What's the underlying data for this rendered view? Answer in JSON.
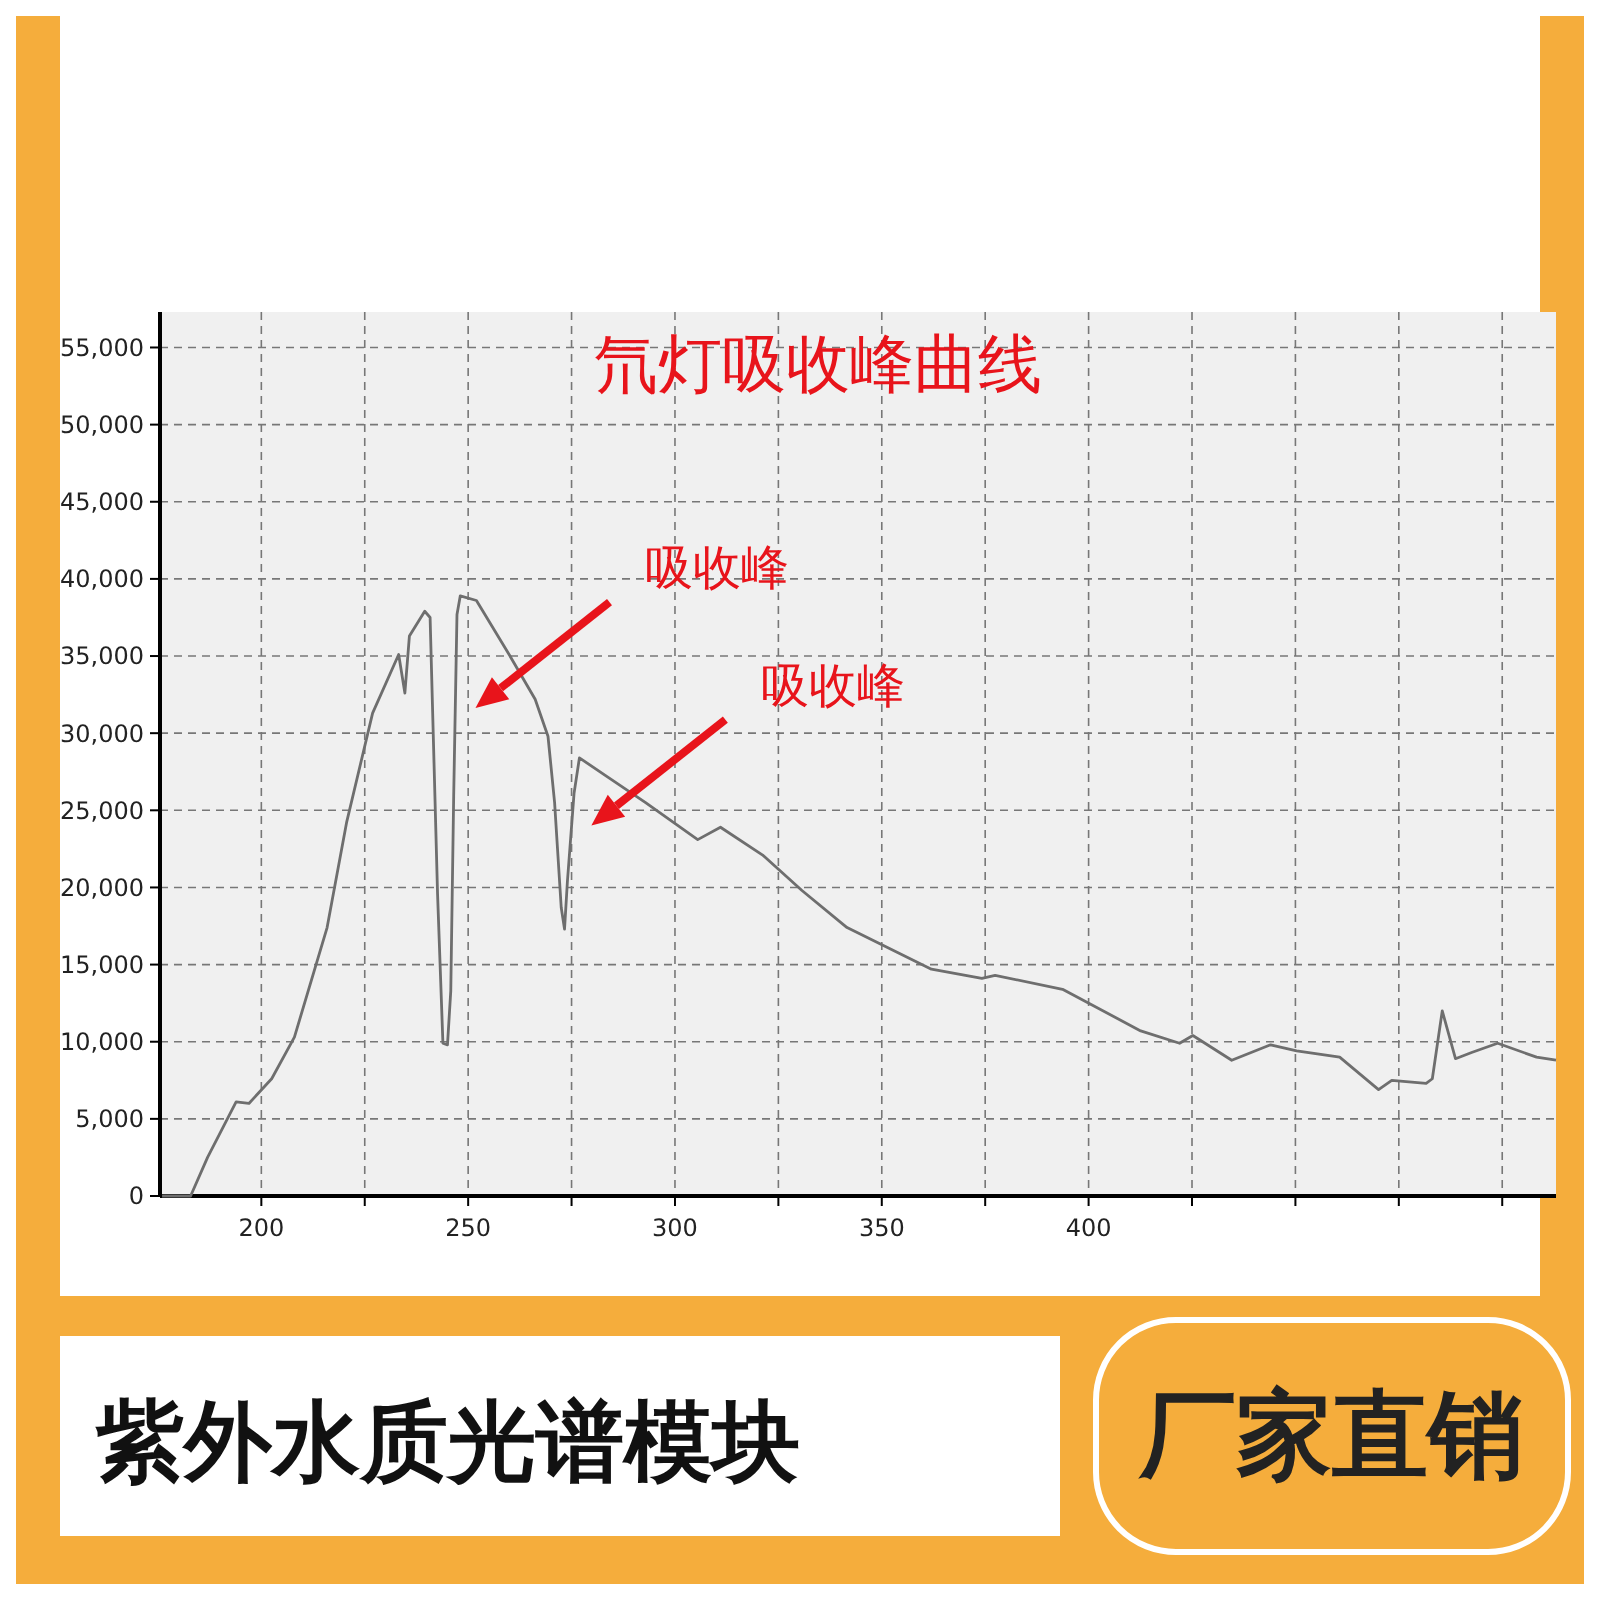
{
  "chart_data": {
    "type": "line",
    "title": "氘灯吸收峰曲线",
    "xlim": [
      175.5,
      513
    ],
    "ylim": [
      0,
      57300
    ],
    "xticks": [
      200,
      {
        "value": 225,
        "label": null
      },
      250,
      {
        "value": 275,
        "label": null
      },
      300,
      {
        "value": 325,
        "label": null
      },
      350,
      {
        "value": 375,
        "label": null
      },
      400,
      {
        "value": 425,
        "label": null
      },
      {
        "value": 450,
        "label": null
      },
      {
        "value": 475,
        "label": null
      },
      {
        "value": 500,
        "label": null
      }
    ],
    "yticks": [
      0,
      {
        "value": 5000,
        "label": "5,000"
      },
      {
        "value": 10000,
        "label": "10,000"
      },
      {
        "value": 15000,
        "label": "15,000"
      },
      {
        "value": 20000,
        "label": "20,000"
      },
      {
        "value": 25000,
        "label": "25,000"
      },
      {
        "value": 30000,
        "label": "30,000"
      },
      {
        "value": 35000,
        "label": "35,000"
      },
      {
        "value": 40000,
        "label": "40,000"
      },
      {
        "value": 45000,
        "label": "45,000"
      },
      {
        "value": 50000,
        "label": "50,000"
      },
      {
        "value": 55000,
        "label": "55,000"
      }
    ],
    "grid": true,
    "line_style": "solid",
    "marker": "none",
    "series": [
      {
        "color": "#6e6e6e",
        "x": [
          176,
          182.9,
          187,
          193.9,
          197,
          202.5,
          208,
          215.9,
          220.6,
          226.9,
          233.2,
          234.7,
          235.8,
          239.5,
          240.8,
          242.6,
          243.9,
          245,
          245.8,
          246.5,
          247.3,
          248.1,
          252,
          259.9,
          266.2,
          269.3,
          270.9,
          272.5,
          273.3,
          274,
          275.6,
          276.9,
          283.5,
          292.9,
          305.5,
          311,
          321.2,
          330.7,
          341.6,
          362,
          374.2,
          377.4,
          393.7,
          412.6,
          422,
          425.2,
          434.6,
          444,
          450.3,
          460.7,
          470.1,
          473.3,
          481.6,
          483.1,
          485.5,
          488.7,
          492.6,
          498.9,
          508.3,
          513
        ],
        "values": [
          0,
          0,
          2500,
          6100,
          6000,
          7600,
          10300,
          17400,
          24200,
          31300,
          35100,
          32600,
          36300,
          37900,
          37500,
          19600,
          9900,
          9800,
          13300,
          25900,
          37700,
          38900,
          38600,
          35100,
          32200,
          29800,
          25500,
          18700,
          17300,
          20400,
          26100,
          28400,
          27200,
          25500,
          23100,
          23900,
          22100,
          19800,
          17400,
          14700,
          14100,
          14300,
          13400,
          10700,
          9900,
          10400,
          8800,
          9800,
          9400,
          9000,
          6900,
          7500,
          7300,
          7600,
          12000,
          8900,
          9300,
          9900,
          9000,
          8800
        ]
      }
    ],
    "annotations": [
      "吸收峰",
      "吸收峰",
      "紫外水质光谱模块",
      "厂家直销"
    ]
  }
}
